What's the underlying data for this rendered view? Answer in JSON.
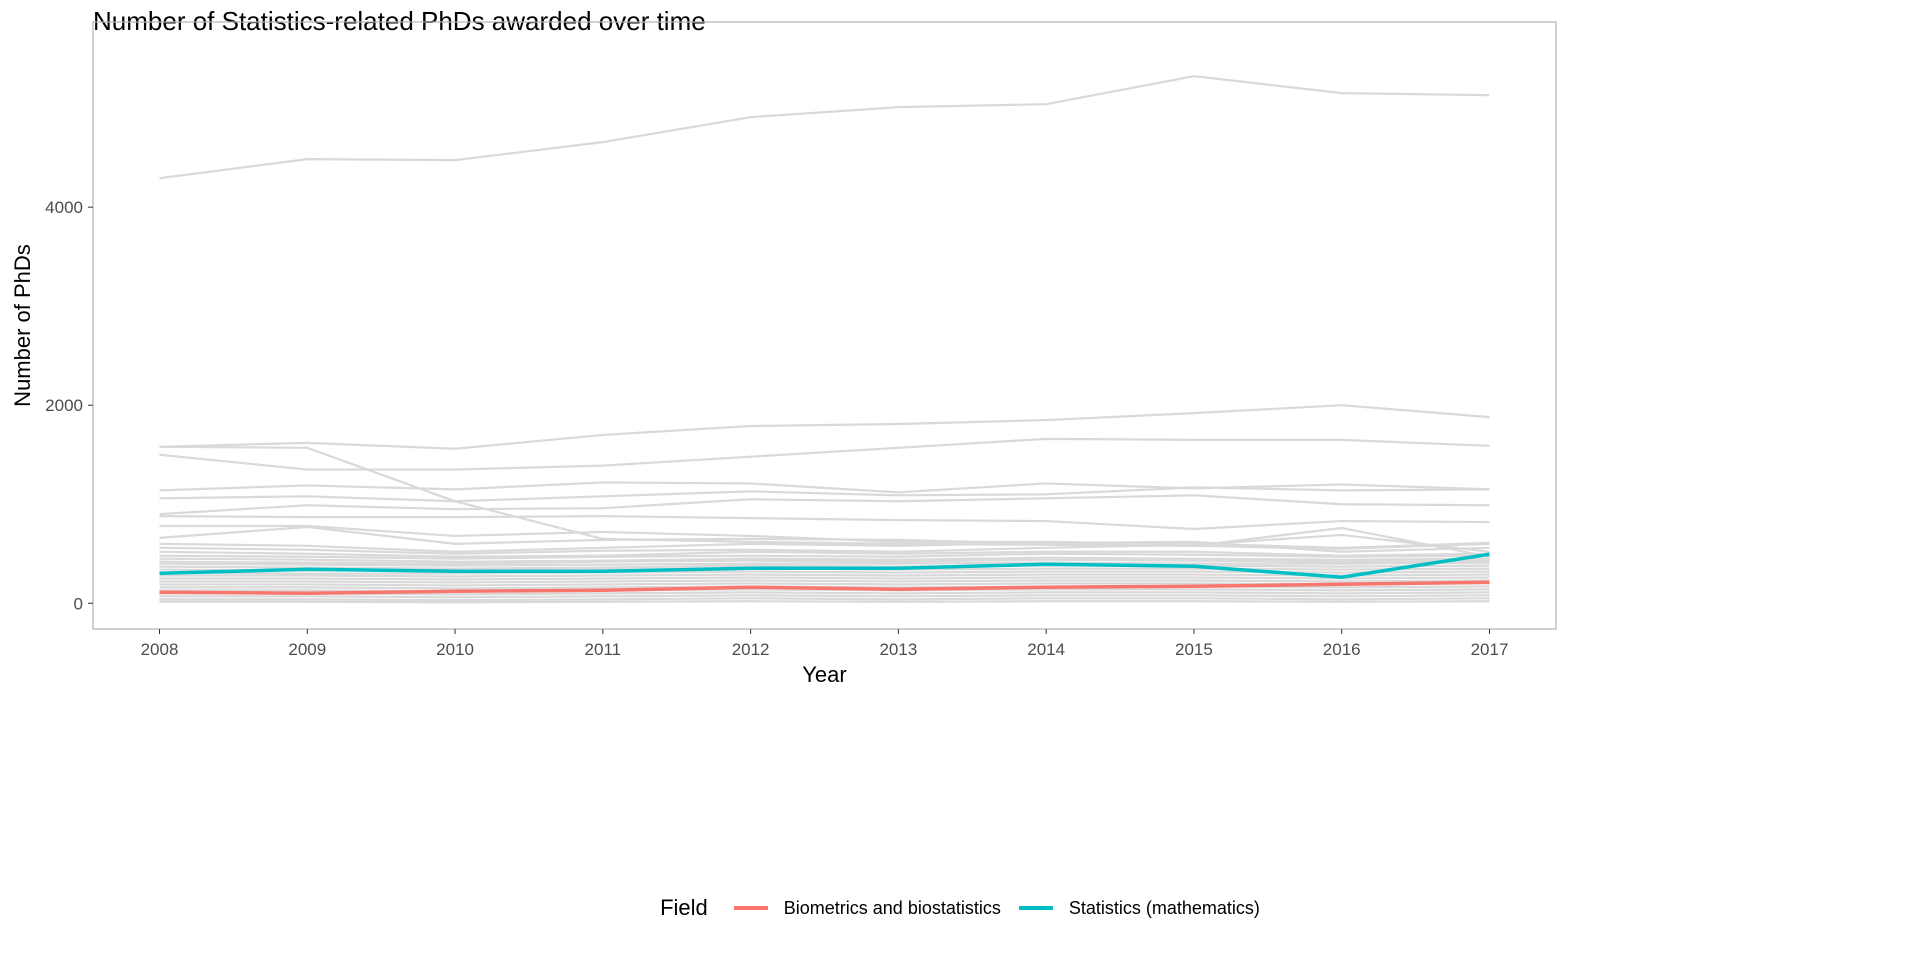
{
  "chart_data": {
    "type": "line",
    "title": "Number of Statistics-related PhDs awarded over time",
    "xlabel": "Year",
    "ylabel": "Number of PhDs",
    "x": [
      2008,
      2009,
      2010,
      2011,
      2012,
      2013,
      2014,
      2015,
      2016,
      2017
    ],
    "xlim": [
      2007.55,
      2017.45
    ],
    "ylim": [
      -260,
      5870
    ],
    "yticks": [
      0,
      2000,
      4000
    ],
    "grid": false,
    "legend": {
      "title": "Field",
      "placement": "bottom"
    },
    "highlight_series": [
      {
        "name": "Biometrics and biostatistics",
        "color": "#F8766D",
        "values": [
          111,
          101,
          121,
          131,
          162,
          141,
          162,
          172,
          192,
          212
        ]
      },
      {
        "name": "Statistics (mathematics)",
        "color": "#00BFC4",
        "values": [
          303,
          343,
          323,
          323,
          354,
          354,
          394,
          374,
          263,
          495
        ]
      }
    ],
    "background_color": "#d9d9d9",
    "background_series": [
      [
        4293,
        4485,
        4475,
        4657,
        4909,
        5010,
        5040,
        5323,
        5152,
        5131
      ],
      [
        1580,
        1620,
        1560,
        1700,
        1790,
        1810,
        1850,
        1920,
        2000,
        1880
      ],
      [
        1580,
        1570,
        1030,
        650,
        620,
        600,
        590,
        580,
        550,
        600
      ],
      [
        1500,
        1350,
        1350,
        1390,
        1480,
        1570,
        1660,
        1650,
        1650,
        1590
      ],
      [
        1140,
        1190,
        1150,
        1220,
        1210,
        1120,
        1210,
        1160,
        1200,
        1150
      ],
      [
        1060,
        1080,
        1030,
        1080,
        1130,
        1090,
        1100,
        1170,
        1140,
        1150
      ],
      [
        900,
        990,
        950,
        960,
        1050,
        1030,
        1060,
        1090,
        1000,
        990
      ],
      [
        880,
        870,
        870,
        880,
        860,
        840,
        830,
        750,
        830,
        820
      ],
      [
        780,
        780,
        680,
        720,
        680,
        620,
        620,
        600,
        560,
        610
      ],
      [
        660,
        770,
        600,
        640,
        650,
        640,
        600,
        580,
        760,
        470
      ],
      [
        600,
        580,
        520,
        560,
        600,
        580,
        610,
        620,
        520,
        560
      ],
      [
        560,
        540,
        500,
        530,
        540,
        520,
        560,
        590,
        690,
        520
      ],
      [
        520,
        500,
        470,
        480,
        520,
        500,
        520,
        520,
        480,
        500
      ],
      [
        480,
        470,
        450,
        470,
        480,
        470,
        500,
        490,
        470,
        480
      ],
      [
        450,
        440,
        420,
        430,
        450,
        440,
        460,
        450,
        440,
        450
      ],
      [
        420,
        410,
        400,
        420,
        430,
        420,
        440,
        430,
        420,
        430
      ],
      [
        400,
        390,
        380,
        390,
        400,
        400,
        410,
        400,
        400,
        410
      ],
      [
        370,
        360,
        350,
        360,
        380,
        370,
        380,
        380,
        370,
        380
      ],
      [
        340,
        330,
        330,
        340,
        350,
        340,
        350,
        350,
        340,
        350
      ],
      [
        310,
        300,
        300,
        310,
        320,
        310,
        320,
        320,
        310,
        320
      ],
      [
        280,
        280,
        270,
        280,
        290,
        280,
        290,
        290,
        280,
        290
      ],
      [
        250,
        250,
        240,
        250,
        260,
        250,
        260,
        260,
        250,
        260
      ],
      [
        220,
        220,
        210,
        220,
        230,
        220,
        230,
        230,
        220,
        230
      ],
      [
        190,
        190,
        180,
        190,
        200,
        190,
        200,
        200,
        190,
        200
      ],
      [
        160,
        160,
        150,
        160,
        170,
        160,
        170,
        170,
        160,
        170
      ],
      [
        130,
        130,
        120,
        130,
        140,
        130,
        140,
        140,
        130,
        140
      ],
      [
        100,
        100,
        90,
        100,
        110,
        100,
        110,
        110,
        100,
        110
      ],
      [
        70,
        70,
        60,
        70,
        80,
        70,
        80,
        80,
        70,
        80
      ],
      [
        40,
        40,
        30,
        40,
        50,
        40,
        50,
        50,
        40,
        50
      ],
      [
        15,
        15,
        10,
        15,
        20,
        15,
        20,
        20,
        15,
        20
      ]
    ]
  }
}
